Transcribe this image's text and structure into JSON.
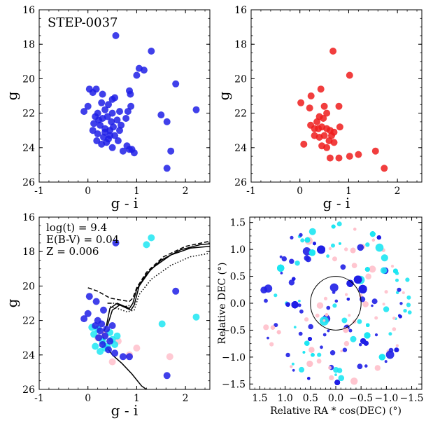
{
  "chart_data": [
    {
      "type": "scatter",
      "panel": "top-left",
      "annotation": "STEP-0037",
      "xlabel": "g - i",
      "ylabel": "g",
      "xlim": [
        -1,
        2.5
      ],
      "ylim": [
        26,
        16
      ],
      "xticks": [
        -1,
        0,
        1,
        2
      ],
      "yticks": [
        16,
        18,
        20,
        22,
        24,
        26
      ],
      "series": [
        {
          "color": "#1f1fe6",
          "points": [
            [
              0.57,
              17.5
            ],
            [
              1.3,
              18.4
            ],
            [
              1.05,
              19.4
            ],
            [
              1.15,
              19.5
            ],
            [
              1.0,
              19.8
            ],
            [
              0.85,
              20.7
            ],
            [
              0.87,
              20.9
            ],
            [
              1.8,
              20.3
            ],
            [
              0.03,
              20.6
            ],
            [
              0.17,
              20.6
            ],
            [
              0.1,
              20.8
            ],
            [
              0.3,
              20.9
            ],
            [
              0.5,
              21.2
            ],
            [
              0.55,
              21.1
            ],
            [
              0.0,
              21.6
            ],
            [
              0.28,
              21.4
            ],
            [
              0.42,
              21.5
            ],
            [
              0.35,
              21.8
            ],
            [
              0.2,
              22.0
            ],
            [
              0.5,
              22.0
            ],
            [
              0.65,
              21.9
            ],
            [
              0.82,
              21.9
            ],
            [
              0.88,
              21.6
            ],
            [
              -0.08,
              21.9
            ],
            [
              0.15,
              22.2
            ],
            [
              0.3,
              22.3
            ],
            [
              0.4,
              22.2
            ],
            [
              0.48,
              22.5
            ],
            [
              0.6,
              22.4
            ],
            [
              0.78,
              22.3
            ],
            [
              1.5,
              22.1
            ],
            [
              1.62,
              22.5
            ],
            [
              2.22,
              21.8
            ],
            [
              0.12,
              22.6
            ],
            [
              0.25,
              22.7
            ],
            [
              0.35,
              22.9
            ],
            [
              0.45,
              23.0
            ],
            [
              0.52,
              22.8
            ],
            [
              0.65,
              23.0
            ],
            [
              0.1,
              23.0
            ],
            [
              0.2,
              23.2
            ],
            [
              0.32,
              23.4
            ],
            [
              0.42,
              23.5
            ],
            [
              0.55,
              23.3
            ],
            [
              0.62,
              23.6
            ],
            [
              0.18,
              23.6
            ],
            [
              0.28,
              23.8
            ],
            [
              0.38,
              23.7
            ],
            [
              0.5,
              24.0
            ],
            [
              0.72,
              24.2
            ],
            [
              0.85,
              24.1
            ],
            [
              0.95,
              24.3
            ],
            [
              0.8,
              23.9
            ],
            [
              0.45,
              23.3
            ],
            [
              0.35,
              23.1
            ],
            [
              0.22,
              22.4
            ],
            [
              1.7,
              24.2
            ],
            [
              1.62,
              25.2
            ],
            [
              0.9,
              24.1
            ],
            [
              0.68,
              22.7
            ]
          ]
        }
      ]
    },
    {
      "type": "scatter",
      "panel": "top-right",
      "xlabel": "g - i",
      "ylabel": "g",
      "xlim": [
        -1,
        2.5
      ],
      "ylim": [
        26,
        16
      ],
      "xticks": [
        -1,
        0,
        1,
        2
      ],
      "yticks": [
        16,
        18,
        20,
        22,
        24,
        26
      ],
      "series": [
        {
          "color": "#ee1c1c",
          "points": [
            [
              0.68,
              18.4
            ],
            [
              1.02,
              19.8
            ],
            [
              0.43,
              20.6
            ],
            [
              0.23,
              21.0
            ],
            [
              0.02,
              21.4
            ],
            [
              0.2,
              21.7
            ],
            [
              0.5,
              21.6
            ],
            [
              0.8,
              21.6
            ],
            [
              0.55,
              22.0
            ],
            [
              0.4,
              22.2
            ],
            [
              0.48,
              22.3
            ],
            [
              0.35,
              22.5
            ],
            [
              0.22,
              22.7
            ],
            [
              0.3,
              22.9
            ],
            [
              0.45,
              22.8
            ],
            [
              0.55,
              22.9
            ],
            [
              0.62,
              23.0
            ],
            [
              0.7,
              23.1
            ],
            [
              0.82,
              22.8
            ],
            [
              0.3,
              23.3
            ],
            [
              0.4,
              23.4
            ],
            [
              0.5,
              23.3
            ],
            [
              0.6,
              23.6
            ],
            [
              0.7,
              23.7
            ],
            [
              0.45,
              23.9
            ],
            [
              0.55,
              24.0
            ],
            [
              0.08,
              23.8
            ],
            [
              1.02,
              24.5
            ],
            [
              1.2,
              24.4
            ],
            [
              0.8,
              24.6
            ],
            [
              0.62,
              24.6
            ],
            [
              1.55,
              24.2
            ],
            [
              1.73,
              25.2
            ],
            [
              0.38,
              22.9
            ],
            [
              0.65,
              23.3
            ]
          ]
        }
      ]
    },
    {
      "type": "scatter",
      "panel": "bottom-left",
      "annotations": [
        "log(t) = 9.4",
        "E(B-V) = 0.04",
        "Z = 0.006"
      ],
      "xlabel": "g - i",
      "ylabel": "g",
      "xlim": [
        -1,
        2.5
      ],
      "ylim": [
        26,
        16
      ],
      "xticks": [
        -1,
        0,
        1,
        2
      ],
      "yticks": [
        16,
        18,
        20,
        22,
        24,
        26
      ],
      "series": [
        {
          "color": "#ffc0cb",
          "points": [
            [
              1.0,
              23.6
            ],
            [
              0.85,
              24.0
            ],
            [
              1.68,
              24.1
            ],
            [
              0.5,
              24.4
            ],
            [
              0.2,
              23.0
            ],
            [
              0.35,
              22.8
            ],
            [
              0.62,
              23.2
            ]
          ]
        },
        {
          "color": "#1de6f2",
          "points": [
            [
              1.3,
              17.2
            ],
            [
              1.2,
              17.6
            ],
            [
              2.22,
              21.8
            ],
            [
              1.52,
              22.2
            ],
            [
              0.12,
              22.8
            ],
            [
              0.2,
              22.5
            ],
            [
              0.3,
              23.2
            ],
            [
              0.4,
              23.5
            ],
            [
              0.5,
              23.1
            ],
            [
              0.25,
              23.8
            ],
            [
              0.35,
              23.6
            ],
            [
              0.6,
              22.9
            ],
            [
              0.15,
              23.5
            ],
            [
              0.45,
              22.7
            ],
            [
              0.08,
              22.4
            ],
            [
              0.55,
              23.4
            ]
          ]
        },
        {
          "color": "#1f1fe6",
          "points": [
            [
              0.57,
              17.5
            ],
            [
              1.8,
              20.3
            ],
            [
              0.03,
              20.6
            ],
            [
              0.17,
              20.9
            ],
            [
              0.32,
              21.4
            ],
            [
              0.0,
              21.6
            ],
            [
              -0.08,
              21.9
            ],
            [
              0.2,
              22.0
            ],
            [
              0.28,
              22.2
            ],
            [
              0.38,
              22.5
            ],
            [
              0.15,
              22.3
            ],
            [
              0.25,
              22.6
            ],
            [
              0.35,
              22.9
            ],
            [
              0.45,
              23.2
            ],
            [
              0.3,
              23.4
            ],
            [
              0.42,
              23.7
            ],
            [
              0.55,
              23.9
            ],
            [
              0.72,
              24.1
            ],
            [
              0.85,
              24.1
            ],
            [
              1.62,
              25.2
            ],
            [
              0.5,
              22.3
            ],
            [
              0.22,
              23.0
            ]
          ]
        }
      ],
      "isochrones": [
        {
          "style": "solid",
          "points": [
            [
              0.38,
              22.3
            ],
            [
              0.3,
              22.8
            ],
            [
              0.35,
              23.4
            ],
            [
              0.5,
              24.0
            ],
            [
              0.7,
              24.5
            ],
            [
              0.9,
              25.1
            ],
            [
              1.1,
              25.8
            ],
            [
              1.2,
              26.0
            ]
          ]
        },
        {
          "style": "solid",
          "points": [
            [
              0.38,
              22.3
            ],
            [
              0.45,
              21.3
            ],
            [
              0.6,
              21.0
            ],
            [
              0.85,
              21.3
            ],
            [
              0.92,
              21.0
            ],
            [
              1.0,
              20.2
            ],
            [
              1.2,
              19.3
            ],
            [
              1.5,
              18.5
            ],
            [
              1.9,
              17.9
            ],
            [
              2.3,
              17.6
            ],
            [
              2.5,
              17.55
            ]
          ]
        },
        {
          "style": "solid",
          "points": [
            [
              0.4,
              22.3
            ],
            [
              0.5,
              21.4
            ],
            [
              0.65,
              21.1
            ],
            [
              0.88,
              21.4
            ],
            [
              0.95,
              21.1
            ],
            [
              1.05,
              20.0
            ],
            [
              1.3,
              19.0
            ],
            [
              1.7,
              18.2
            ],
            [
              2.1,
              17.8
            ],
            [
              2.5,
              17.7
            ]
          ]
        },
        {
          "style": "dashed",
          "points": [
            [
              0.0,
              20.1
            ],
            [
              0.2,
              20.3
            ],
            [
              0.45,
              20.7
            ],
            [
              0.65,
              20.8
            ],
            [
              0.85,
              20.9
            ],
            [
              0.92,
              20.7
            ],
            [
              1.0,
              20.1
            ],
            [
              1.2,
              19.2
            ],
            [
              1.55,
              18.3
            ],
            [
              2.0,
              17.7
            ],
            [
              2.5,
              17.4
            ]
          ]
        },
        {
          "style": "dotted",
          "points": [
            [
              0.45,
              21.2
            ],
            [
              0.6,
              21.3
            ],
            [
              0.8,
              21.5
            ],
            [
              0.95,
              21.4
            ],
            [
              1.05,
              20.5
            ],
            [
              1.3,
              19.6
            ],
            [
              1.7,
              18.8
            ],
            [
              2.1,
              18.3
            ],
            [
              2.5,
              18.1
            ]
          ]
        },
        {
          "style": "dashdot",
          "points": [
            [
              0.4,
              21.0
            ],
            [
              0.55,
              21.0
            ],
            [
              0.75,
              21.2
            ],
            [
              0.9,
              21.1
            ]
          ]
        }
      ]
    },
    {
      "type": "scatter",
      "panel": "bottom-right",
      "xlabel": "Relative RA * cos(DEC) (°)",
      "ylabel": "Relative DEC (°)",
      "xlim": [
        1.7,
        -1.7
      ],
      "ylim": [
        -1.6,
        1.6
      ],
      "xticks": [
        1.5,
        1.0,
        0.5,
        0.0,
        -0.5,
        -1.0,
        -1.5
      ],
      "xtick_labels": [
        "1.5",
        "1.0",
        "0.5",
        "0.0",
        "−0.5",
        "−1.0",
        "−1.5"
      ],
      "yticks": [
        -1.5,
        -1.0,
        -0.5,
        0.0,
        0.5,
        1.0,
        1.5
      ],
      "ytick_labels": [
        "−1.5",
        "−1.0",
        "−0.5",
        "0.0",
        "0.5",
        "1.0",
        "1.5"
      ],
      "circle": {
        "center": [
          0,
          0
        ],
        "radius": 0.5
      },
      "field_radius_deg": 1.5,
      "colors": {
        "blue": "#1f1fe6",
        "cyan": "#1de6f2",
        "pink": "#ffc0cb"
      }
    }
  ]
}
